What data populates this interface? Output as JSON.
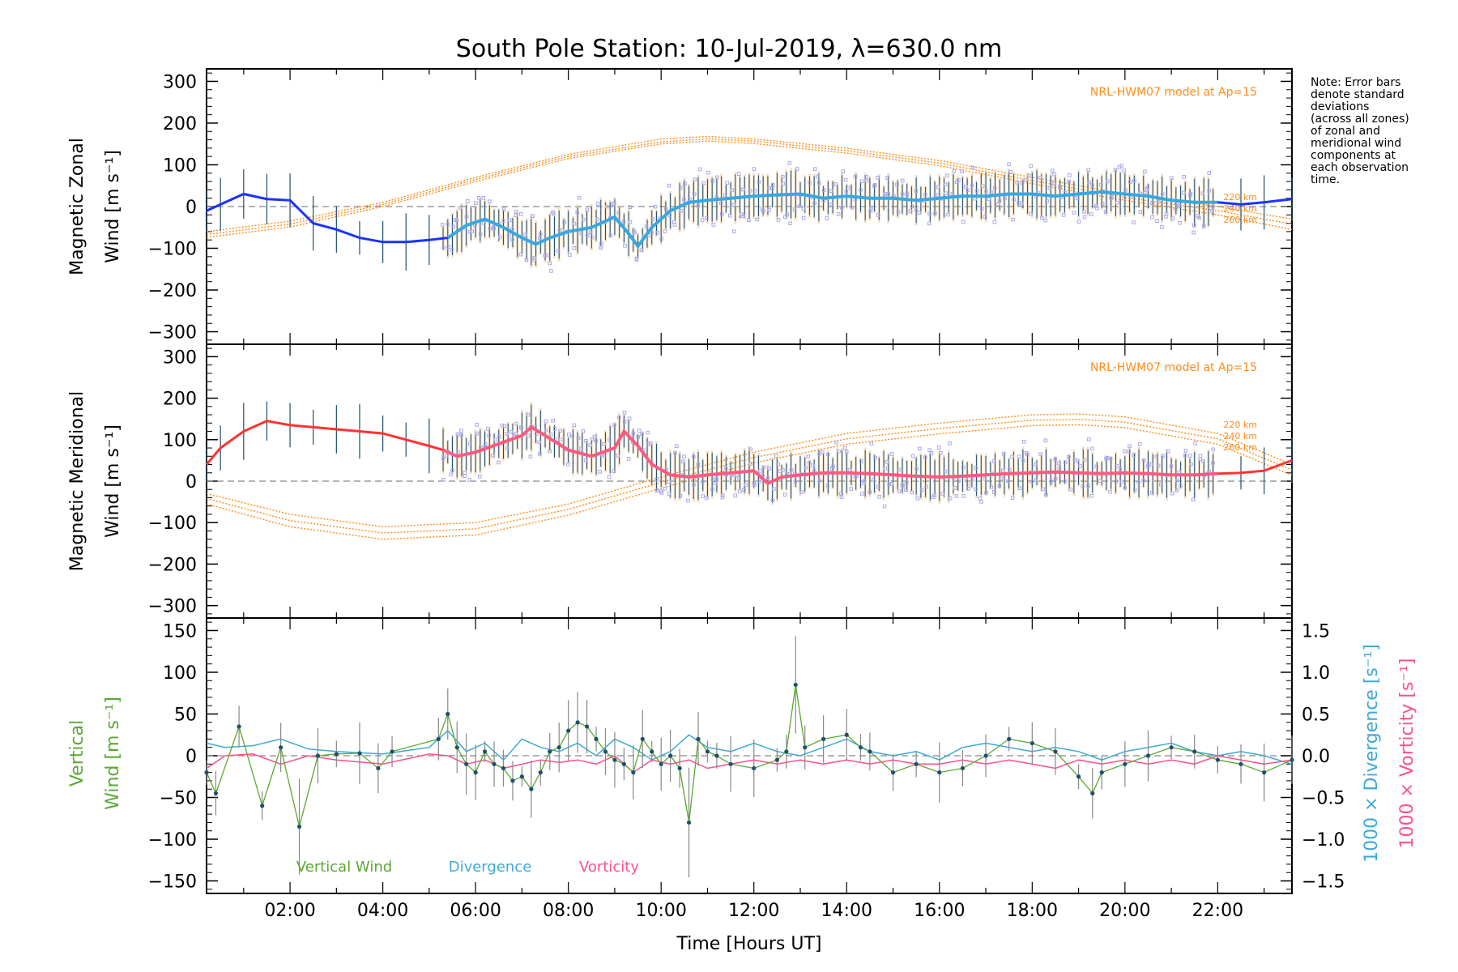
{
  "title": "South Pole Station: 10-Jul-2019, λ=630.0 nm",
  "note": [
    "Note: Error bars",
    "denote standard",
    "deviations",
    "(across all zones)",
    "of zonal and",
    "meridional wind",
    "components at",
    "each observation",
    "time."
  ],
  "colors": {
    "zonal": "#1a33ff",
    "zonal_light": "#39a8e0",
    "meridional": "#ff3333",
    "meridional_light": "#ff5a82",
    "model": "#ff8c1a",
    "vertical": "#5aa832",
    "divergence": "#3fa9d6",
    "vorticity": "#ff4f8c",
    "zone_points": "#a9a9ee"
  },
  "chart_data": [
    {
      "type": "line",
      "name": "zonal",
      "ylabel_line1": "Magnetic Zonal",
      "ylabel_line2": "Wind [m s⁻¹]",
      "ylim": [
        -330,
        330
      ],
      "yticks": [
        -300,
        -200,
        -100,
        0,
        100,
        200,
        300
      ],
      "xlim": [
        0.2,
        23.6
      ],
      "model_label": "NRL-HWM07 model at Ap=15",
      "model_altitudes": [
        "220 km",
        "240 km",
        "260 km"
      ],
      "x": [
        0.2,
        0.5,
        1.0,
        1.5,
        2.0,
        2.5,
        3.0,
        3.5,
        4.0,
        4.5,
        5.0,
        5.4,
        5.8,
        6.2,
        6.6,
        7.0,
        7.3,
        7.6,
        8.0,
        8.5,
        9.0,
        9.3,
        9.5,
        9.8,
        10.2,
        10.6,
        11.0,
        11.5,
        12.0,
        12.5,
        13.0,
        13.5,
        14.0,
        14.5,
        15.0,
        15.5,
        16.0,
        16.5,
        17.0,
        17.5,
        18.0,
        18.5,
        19.0,
        19.5,
        20.0,
        20.5,
        21.0,
        21.5,
        22.0,
        22.5,
        23.0,
        23.6
      ],
      "values": [
        -10,
        5,
        30,
        18,
        15,
        -40,
        -55,
        -75,
        -85,
        -85,
        -80,
        -75,
        -45,
        -30,
        -50,
        -75,
        -90,
        -75,
        -60,
        -50,
        -25,
        -65,
        -95,
        -50,
        -10,
        10,
        15,
        20,
        25,
        28,
        30,
        20,
        25,
        20,
        20,
        15,
        20,
        25,
        25,
        30,
        30,
        25,
        30,
        35,
        30,
        25,
        15,
        10,
        10,
        5,
        10,
        18
      ],
      "model": [
        {
          "label": "220 km",
          "x": [
            0.2,
            2,
            4,
            6,
            8,
            10,
            11,
            12,
            14,
            16,
            18,
            20,
            22,
            23.6
          ],
          "values": [
            -60,
            -35,
            10,
            70,
            125,
            162,
            168,
            162,
            140,
            110,
            70,
            30,
            0,
            -30
          ]
        },
        {
          "label": "240 km",
          "x": [
            0.2,
            2,
            4,
            6,
            8,
            10,
            11,
            12,
            14,
            16,
            18,
            20,
            22,
            23.6
          ],
          "values": [
            -67,
            -42,
            5,
            65,
            120,
            155,
            162,
            157,
            134,
            104,
            62,
            22,
            -10,
            -42
          ]
        },
        {
          "label": "260 km",
          "x": [
            0.2,
            2,
            4,
            6,
            8,
            10,
            11,
            12,
            14,
            16,
            18,
            20,
            22,
            23.6
          ],
          "values": [
            -74,
            -49,
            0,
            60,
            115,
            150,
            157,
            151,
            128,
            98,
            55,
            15,
            -20,
            -55
          ]
        }
      ]
    },
    {
      "type": "line",
      "name": "meridional",
      "ylabel_line1": "Magnetic Meridional",
      "ylabel_line2": "Wind [m s⁻¹]",
      "ylim": [
        -330,
        330
      ],
      "yticks": [
        -300,
        -200,
        -100,
        0,
        100,
        200,
        300
      ],
      "xlim": [
        0.2,
        23.6
      ],
      "model_label": "NRL-HWM07 model at Ap=15",
      "model_altitudes": [
        "220 km",
        "240 km",
        "260 km"
      ],
      "x": [
        0.2,
        0.5,
        1.0,
        1.5,
        2.0,
        2.5,
        3.0,
        3.5,
        4.0,
        4.5,
        5.0,
        5.3,
        5.6,
        6.0,
        6.5,
        7.0,
        7.2,
        7.5,
        8.0,
        8.5,
        9.0,
        9.2,
        9.5,
        9.8,
        10.2,
        10.6,
        11.0,
        11.5,
        12.0,
        12.3,
        12.6,
        13.0,
        13.5,
        14.0,
        14.5,
        15.0,
        15.5,
        16.0,
        16.5,
        17.0,
        17.5,
        18.0,
        18.5,
        19.0,
        19.5,
        20.0,
        20.5,
        21.0,
        21.5,
        22.0,
        22.5,
        23.0,
        23.6
      ],
      "values": [
        40,
        80,
        120,
        145,
        135,
        130,
        125,
        120,
        115,
        100,
        85,
        75,
        60,
        70,
        90,
        110,
        130,
        110,
        75,
        60,
        80,
        120,
        85,
        40,
        15,
        10,
        15,
        20,
        25,
        -5,
        10,
        15,
        20,
        20,
        18,
        15,
        12,
        10,
        12,
        15,
        18,
        20,
        22,
        20,
        18,
        20,
        18,
        15,
        15,
        18,
        20,
        25,
        50
      ],
      "model": [
        {
          "label": "220 km",
          "x": [
            0.2,
            2,
            4,
            6,
            8,
            10,
            12,
            14,
            16,
            18,
            19,
            20,
            22,
            23.6
          ],
          "values": [
            -30,
            -80,
            -110,
            -100,
            -55,
            10,
            70,
            115,
            140,
            160,
            162,
            155,
            115,
            40
          ]
        },
        {
          "label": "240 km",
          "x": [
            0.2,
            2,
            4,
            6,
            8,
            10,
            12,
            14,
            16,
            18,
            19,
            20,
            22,
            23.6
          ],
          "values": [
            -42,
            -95,
            -125,
            -115,
            -68,
            -3,
            57,
            102,
            127,
            147,
            149,
            142,
            102,
            27
          ]
        },
        {
          "label": "260 km",
          "x": [
            0.2,
            2,
            4,
            6,
            8,
            10,
            12,
            14,
            16,
            18,
            19,
            20,
            22,
            23.6
          ],
          "values": [
            -55,
            -110,
            -140,
            -130,
            -82,
            -17,
            44,
            89,
            114,
            134,
            136,
            129,
            89,
            14
          ]
        }
      ]
    },
    {
      "type": "line",
      "name": "vertical",
      "ylabel_line1": "Vertical",
      "ylabel_line2": "Wind [m s⁻¹]",
      "y2label_div": "1000 × Divergence [s⁻¹]",
      "y2label_vort": "1000 × Vorticity [s⁻¹]",
      "ylim": [
        -165,
        165
      ],
      "yticks": [
        -150,
        -100,
        -50,
        0,
        50,
        100,
        150
      ],
      "y2lim": [
        -1.65,
        1.65
      ],
      "y2ticks": [
        -1.5,
        -1.0,
        -0.5,
        0.0,
        0.5,
        1.0,
        1.5
      ],
      "y2ticklabels": [
        "−1.5",
        "−1.0",
        "−0.5",
        "0.0",
        "0.5",
        "1.0",
        "1.5"
      ],
      "xlim": [
        0.2,
        23.6
      ],
      "xticks": [
        2,
        4,
        6,
        8,
        10,
        12,
        14,
        16,
        18,
        20,
        22
      ],
      "xticklabels": [
        "02:00",
        "04:00",
        "06:00",
        "08:00",
        "10:00",
        "12:00",
        "14:00",
        "16:00",
        "18:00",
        "20:00",
        "22:00"
      ],
      "xlabel": "Time [Hours UT]",
      "legend": [
        "Vertical Wind",
        "Divergence",
        "Vorticity"
      ],
      "series": [
        {
          "name": "Vertical Wind",
          "x": [
            0.2,
            0.4,
            0.9,
            1.4,
            1.8,
            2.2,
            2.6,
            3.0,
            3.5,
            3.9,
            4.2,
            5.2,
            5.4,
            5.6,
            5.8,
            6.0,
            6.2,
            6.4,
            6.6,
            6.8,
            7.0,
            7.2,
            7.4,
            7.6,
            7.8,
            8.0,
            8.2,
            8.4,
            8.6,
            8.8,
            9.0,
            9.2,
            9.4,
            9.6,
            9.8,
            10.0,
            10.2,
            10.4,
            10.6,
            10.8,
            11.0,
            11.2,
            11.5,
            12.0,
            12.5,
            12.7,
            12.9,
            13.1,
            13.5,
            14.0,
            14.3,
            14.5,
            15.0,
            15.5,
            16.0,
            16.5,
            17.0,
            17.5,
            18.0,
            18.5,
            19.0,
            19.3,
            19.5,
            20.0,
            20.5,
            21.0,
            21.5,
            22.0,
            22.5,
            23.0,
            23.6
          ],
          "values": [
            -20,
            -45,
            35,
            -60,
            10,
            -85,
            0,
            2,
            3,
            -15,
            5,
            20,
            50,
            10,
            -10,
            -20,
            5,
            -10,
            -15,
            -30,
            -25,
            -40,
            -20,
            5,
            10,
            30,
            40,
            35,
            20,
            5,
            -5,
            -10,
            -20,
            20,
            5,
            -10,
            0,
            -15,
            -80,
            20,
            5,
            0,
            -10,
            -15,
            -5,
            5,
            85,
            10,
            20,
            25,
            10,
            5,
            -20,
            -10,
            -20,
            -15,
            0,
            20,
            15,
            5,
            -25,
            -45,
            -20,
            -10,
            0,
            10,
            5,
            -5,
            -10,
            -20,
            -5
          ]
        },
        {
          "name": "Divergence",
          "x": [
            0.2,
            0.6,
            1.2,
            1.8,
            2.4,
            3.0,
            4.0,
            5.0,
            5.4,
            5.8,
            6.2,
            6.6,
            7.0,
            7.4,
            7.8,
            8.2,
            8.6,
            9.0,
            9.4,
            9.8,
            10.2,
            10.6,
            11.0,
            11.5,
            12.0,
            12.5,
            13.0,
            13.5,
            14.0,
            14.5,
            15.0,
            15.5,
            16.0,
            16.5,
            17.0,
            17.5,
            18.0,
            18.5,
            19.0,
            19.5,
            20.0,
            20.5,
            21.0,
            21.5,
            22.0,
            22.5,
            23.0,
            23.6
          ],
          "values": [
            0.15,
            0.1,
            0.12,
            0.2,
            0.08,
            0.05,
            0.02,
            0.1,
            0.3,
            0.05,
            0.15,
            -0.05,
            0.2,
            0.1,
            0.05,
            0.15,
            0.0,
            0.2,
            0.1,
            -0.05,
            0.05,
            0.25,
            0.1,
            0.05,
            0.15,
            0.05,
            0.0,
            0.1,
            0.2,
            0.05,
            0.0,
            0.05,
            -0.05,
            0.1,
            0.15,
            0.1,
            0.05,
            0.1,
            0.05,
            -0.05,
            0.05,
            0.1,
            0.15,
            0.05,
            0.0,
            0.05,
            0.0,
            -0.1
          ]
        },
        {
          "name": "Vorticity",
          "x": [
            0.2,
            0.6,
            1.2,
            1.8,
            2.4,
            3.0,
            4.0,
            5.0,
            5.4,
            5.8,
            6.2,
            6.6,
            7.0,
            7.4,
            7.8,
            8.2,
            8.6,
            9.0,
            9.4,
            9.8,
            10.2,
            10.6,
            11.0,
            11.5,
            12.0,
            12.5,
            13.0,
            13.5,
            14.0,
            14.5,
            15.0,
            15.5,
            16.0,
            16.5,
            17.0,
            17.5,
            18.0,
            18.5,
            19.0,
            19.5,
            20.0,
            20.5,
            21.0,
            21.5,
            22.0,
            22.5,
            23.0,
            23.6
          ],
          "values": [
            -0.15,
            0.0,
            0.02,
            -0.1,
            0.0,
            -0.05,
            -0.1,
            0.02,
            0.0,
            -0.1,
            -0.05,
            -0.15,
            -0.1,
            -0.05,
            -0.08,
            -0.05,
            -0.1,
            0.0,
            -0.2,
            -0.05,
            -0.1,
            -0.05,
            -0.15,
            -0.1,
            -0.05,
            -0.1,
            -0.05,
            -0.1,
            -0.05,
            -0.1,
            -0.05,
            -0.1,
            -0.1,
            -0.05,
            -0.1,
            -0.05,
            -0.1,
            -0.15,
            -0.05,
            -0.1,
            -0.05,
            -0.1,
            -0.05,
            -0.1,
            0.0,
            -0.05,
            -0.1,
            -0.05
          ]
        }
      ]
    }
  ]
}
